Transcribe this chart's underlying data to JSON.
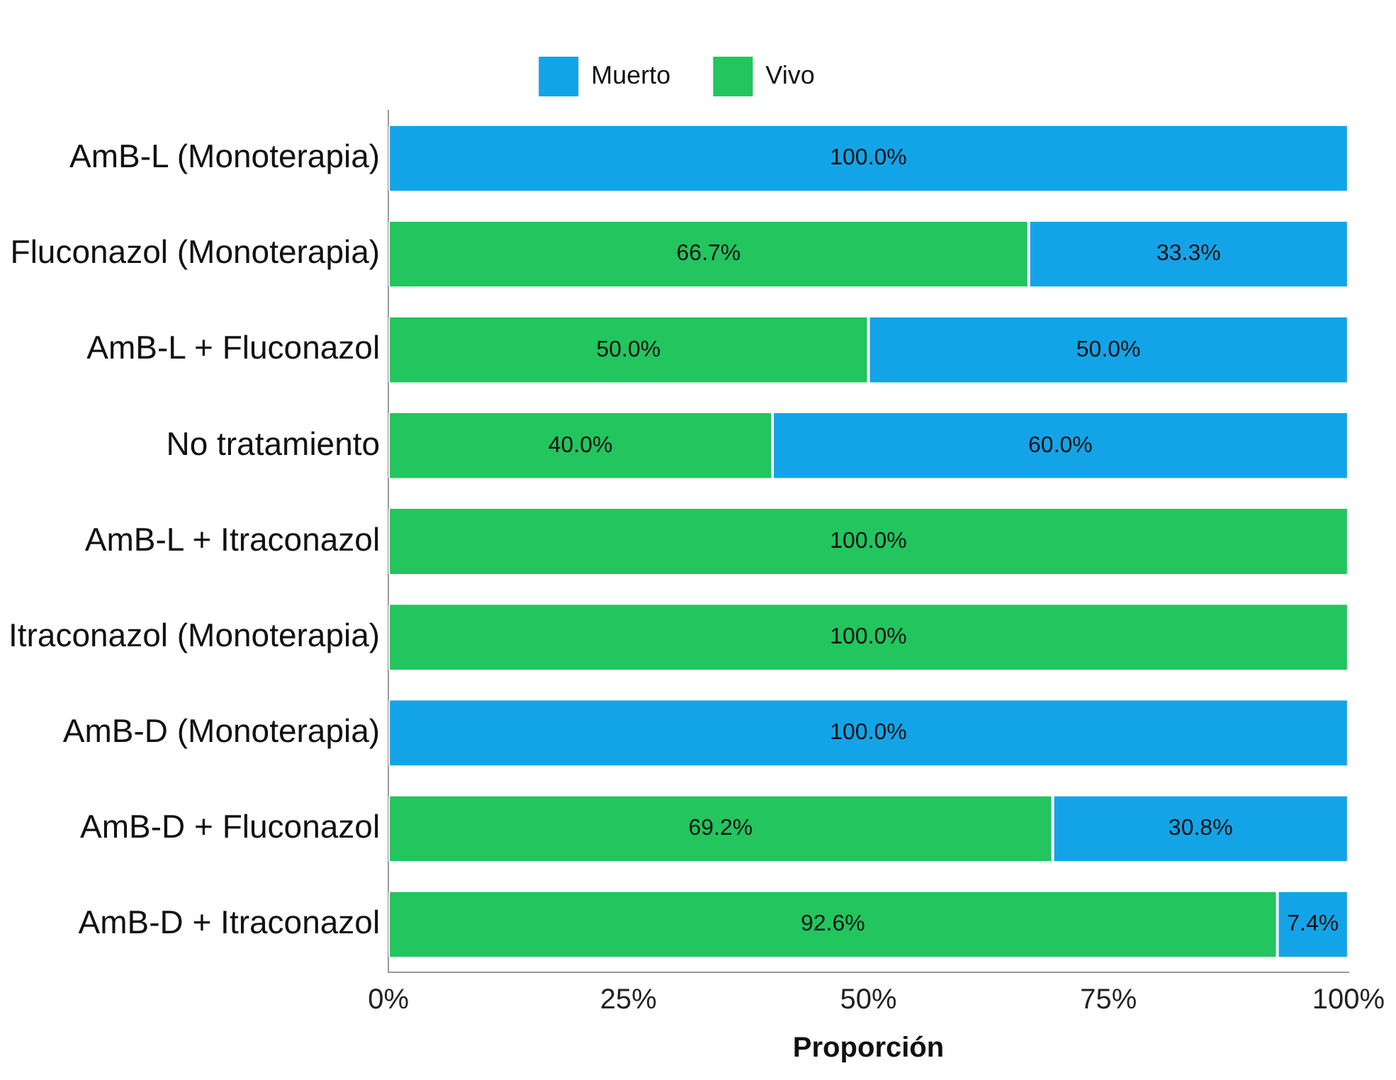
{
  "chart_data": {
    "type": "bar",
    "orientation": "horizontal",
    "stacked": true,
    "xlabel": "Proporción",
    "legend": "top",
    "grid": false,
    "categories": [
      "AmB-L (Monoterapia)",
      "Fluconazol (Monoterapia)",
      "AmB-L + Fluconazol",
      "No tratamiento",
      "AmB-L + Itraconazol",
      "Itraconazol (Monoterapia)",
      "AmB-D (Monoterapia)",
      "AmB-D + Fluconazol",
      "AmB-D + Itraconazol"
    ],
    "series": [
      {
        "name": "Vivo",
        "color": "#22c55e",
        "values": [
          0,
          66.7,
          50,
          40,
          100,
          100,
          0,
          69.2,
          92.6
        ],
        "value_labels": [
          null,
          "66.7%",
          "50.0%",
          "40.0%",
          "100.0%",
          "100.0%",
          null,
          "69.2%",
          "92.6%"
        ]
      },
      {
        "name": "Muerto",
        "color": "#13a4e8",
        "values": [
          100,
          33.3,
          50,
          60,
          0,
          0,
          100,
          30.8,
          7.4
        ],
        "value_labels": [
          "100.0%",
          "33.3%",
          "50.0%",
          "60.0%",
          null,
          null,
          "100.0%",
          "30.8%",
          "7.4%"
        ]
      }
    ],
    "xlim": [
      0,
      100
    ],
    "xticks": [
      {
        "value": 0,
        "label": "0%"
      },
      {
        "value": 25,
        "label": "25%"
      },
      {
        "value": 50,
        "label": "50%"
      },
      {
        "value": 75,
        "label": "75%"
      },
      {
        "value": 100,
        "label": "100%"
      }
    ]
  }
}
